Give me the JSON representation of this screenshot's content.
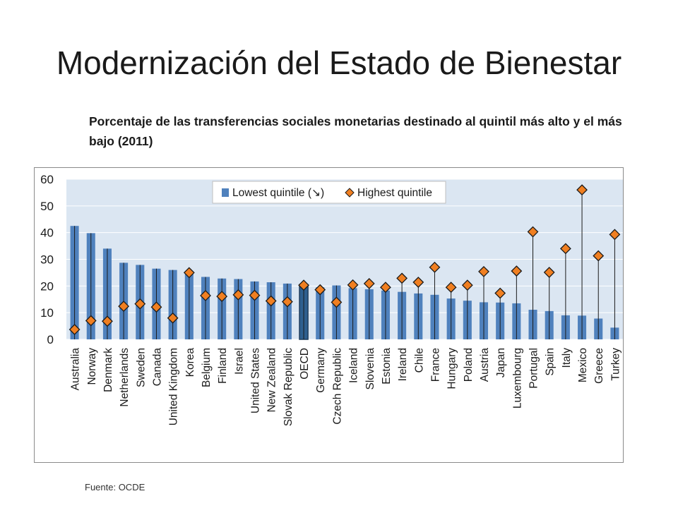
{
  "slide": {
    "title": "Modernización del Estado de Bienestar",
    "subtitle": "Porcentaje de las transferencias sociales monetarias destinado al quintil más alto y el más bajo (2011)",
    "source": "Fuente: OCDE"
  },
  "colors": {
    "bar": "#4f81bd",
    "bar_highlight": "#2e5f8f",
    "diamond_fill": "#f07f21",
    "diamond_stroke": "#1a1a1a",
    "plot_bg": "#dbe6f2",
    "grid": "#ffffff",
    "whisker": "#1a1a1a"
  },
  "chart_data": {
    "type": "bar",
    "title": "",
    "xlabel": "",
    "ylabel": "",
    "ylim": [
      0,
      60
    ],
    "yticks": [
      0,
      10,
      20,
      30,
      40,
      50,
      60
    ],
    "grid": true,
    "legend_position": "top-center",
    "categories": [
      "Australia",
      "Norway",
      "Denmark",
      "Netherlands",
      "Sweden",
      "Canada",
      "United Kingdom",
      "Korea",
      "Belgium",
      "Finland",
      "Israel",
      "United States",
      "New Zealand",
      "Slovak Republic",
      "OECD",
      "Germany",
      "Czech Republic",
      "Iceland",
      "Slovenia",
      "Estonia",
      "Ireland",
      "Chile",
      "France",
      "Hungary",
      "Poland",
      "Austria",
      "Japan",
      "Luxembourg",
      "Portugal",
      "Spain",
      "Italy",
      "Mexico",
      "Greece",
      "Turkey"
    ],
    "highlight_category": "OECD",
    "series": [
      {
        "name": "Lowest quintile (↘)",
        "kind": "bar",
        "values": [
          42.5,
          39.8,
          34.0,
          28.7,
          27.9,
          26.5,
          26.0,
          25.0,
          23.4,
          22.8,
          22.6,
          21.7,
          21.4,
          20.9,
          20.5,
          19.5,
          20.2,
          19.2,
          18.8,
          18.3,
          17.8,
          17.2,
          16.7,
          15.3,
          14.5,
          13.9,
          13.8,
          13.5,
          11.1,
          10.6,
          9.0,
          8.9,
          7.8,
          4.4
        ]
      },
      {
        "name": "Highest quintile",
        "kind": "diamond",
        "values": [
          3.7,
          7.0,
          6.8,
          12.4,
          13.3,
          12.1,
          8.0,
          25.0,
          16.4,
          16.1,
          16.7,
          16.5,
          14.4,
          14.1,
          20.3,
          18.6,
          13.9,
          20.4,
          20.9,
          19.5,
          22.9,
          21.4,
          27.0,
          19.5,
          20.3,
          25.4,
          17.3,
          25.6,
          40.3,
          25.1,
          34.0,
          56.0,
          31.3,
          39.3
        ]
      }
    ]
  }
}
